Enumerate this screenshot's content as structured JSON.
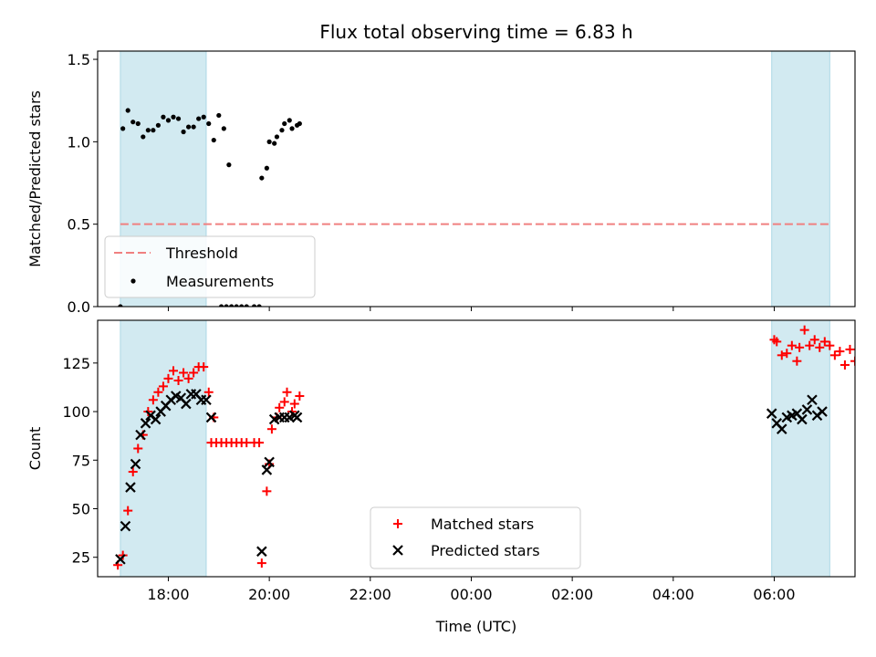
{
  "chart_data": [
    {
      "type": "scatter",
      "title": "Flux total observing time = 6.83 h",
      "xlabel": "",
      "ylabel": "Matched/Predicted stars",
      "xlim": [
        16.6,
        31.6
      ],
      "ylim": [
        0,
        1.55
      ],
      "yticks": [
        0.0,
        0.5,
        1.0,
        1.5
      ],
      "ytick_labels": [
        "0.0",
        "0.5",
        "1.0",
        "1.5"
      ],
      "grid": false,
      "legend": "lower-left",
      "shaded_intervals": [
        [
          17.05,
          18.75
        ],
        [
          29.95,
          31.1
        ]
      ],
      "shade_color": "#add8e6",
      "threshold": {
        "name": "Threshold",
        "value": 0.5,
        "color": "#f08080"
      },
      "series": [
        {
          "name": "Measurements",
          "color": "#000000",
          "points": [
            [
              17.05,
              0.0
            ],
            [
              17.1,
              1.08
            ],
            [
              17.2,
              1.19
            ],
            [
              17.3,
              1.12
            ],
            [
              17.4,
              1.11
            ],
            [
              17.5,
              1.03
            ],
            [
              17.6,
              1.07
            ],
            [
              17.7,
              1.07
            ],
            [
              17.8,
              1.1
            ],
            [
              17.9,
              1.15
            ],
            [
              18.0,
              1.13
            ],
            [
              18.1,
              1.15
            ],
            [
              18.2,
              1.14
            ],
            [
              18.3,
              1.06
            ],
            [
              18.4,
              1.09
            ],
            [
              18.5,
              1.09
            ],
            [
              18.6,
              1.14
            ],
            [
              18.7,
              1.15
            ],
            [
              18.8,
              1.11
            ],
            [
              18.9,
              1.01
            ],
            [
              19.0,
              1.16
            ],
            [
              19.1,
              1.08
            ],
            [
              19.2,
              0.86
            ],
            [
              19.05,
              0.0
            ],
            [
              19.15,
              0.0
            ],
            [
              19.25,
              0.0
            ],
            [
              19.35,
              0.0
            ],
            [
              19.45,
              0.0
            ],
            [
              19.55,
              0.0
            ],
            [
              19.7,
              0.0
            ],
            [
              19.8,
              0.0
            ],
            [
              19.85,
              0.78
            ],
            [
              19.95,
              0.84
            ],
            [
              20.0,
              1.0
            ],
            [
              20.1,
              0.99
            ],
            [
              20.15,
              1.03
            ],
            [
              20.25,
              1.07
            ],
            [
              20.3,
              1.11
            ],
            [
              20.4,
              1.13
            ],
            [
              20.45,
              1.08
            ],
            [
              20.55,
              1.1
            ],
            [
              20.6,
              1.11
            ]
          ]
        }
      ]
    },
    {
      "type": "scatter",
      "title": "",
      "xlabel": "Time (UTC)",
      "ylabel": "Count",
      "xlim": [
        16.6,
        31.6
      ],
      "ylim": [
        15,
        147
      ],
      "yticks": [
        25,
        50,
        75,
        100,
        125
      ],
      "ytick_labels": [
        "25",
        "50",
        "75",
        "100",
        "125"
      ],
      "xticks": [
        18,
        20,
        22,
        24,
        26,
        28,
        30
      ],
      "xtick_labels": [
        "18:00",
        "20:00",
        "22:00",
        "00:00",
        "02:00",
        "04:00",
        "06:00"
      ],
      "grid": false,
      "legend": "lower-center",
      "shaded_intervals": [
        [
          17.05,
          18.75
        ],
        [
          29.95,
          31.1
        ]
      ],
      "shade_color": "#add8e6",
      "series": [
        {
          "name": "Matched stars",
          "marker": "plus",
          "color": "#ff0000",
          "points": [
            [
              17.0,
              21
            ],
            [
              17.1,
              26
            ],
            [
              17.2,
              49
            ],
            [
              17.3,
              69
            ],
            [
              17.4,
              81
            ],
            [
              17.5,
              88
            ],
            [
              17.6,
              100
            ],
            [
              17.7,
              106
            ],
            [
              17.8,
              110
            ],
            [
              17.9,
              113
            ],
            [
              18.0,
              117
            ],
            [
              18.1,
              121
            ],
            [
              18.2,
              116
            ],
            [
              18.3,
              120
            ],
            [
              18.4,
              117
            ],
            [
              18.5,
              120
            ],
            [
              18.6,
              123
            ],
            [
              18.7,
              123
            ],
            [
              18.8,
              110
            ],
            [
              18.9,
              97
            ],
            [
              18.85,
              84
            ],
            [
              18.95,
              84
            ],
            [
              19.05,
              84
            ],
            [
              19.15,
              84
            ],
            [
              19.25,
              84
            ],
            [
              19.35,
              84
            ],
            [
              19.45,
              84
            ],
            [
              19.55,
              84
            ],
            [
              19.7,
              84
            ],
            [
              19.8,
              84
            ],
            [
              19.85,
              22
            ],
            [
              19.95,
              59
            ],
            [
              20.0,
              73
            ],
            [
              20.05,
              91
            ],
            [
              20.15,
              97
            ],
            [
              20.2,
              102
            ],
            [
              20.3,
              105
            ],
            [
              20.35,
              110
            ],
            [
              20.45,
              100
            ],
            [
              20.5,
              104
            ],
            [
              20.6,
              108
            ],
            [
              30.0,
              137
            ],
            [
              30.05,
              136
            ],
            [
              30.15,
              129
            ],
            [
              30.25,
              130
            ],
            [
              30.35,
              134
            ],
            [
              30.45,
              126
            ],
            [
              30.5,
              133
            ],
            [
              30.6,
              142
            ],
            [
              30.7,
              134
            ],
            [
              30.8,
              137
            ],
            [
              30.9,
              133
            ],
            [
              31.0,
              136
            ],
            [
              31.1,
              134
            ],
            [
              31.2,
              129
            ],
            [
              31.3,
              131
            ],
            [
              31.4,
              124
            ],
            [
              31.5,
              132
            ],
            [
              31.6,
              126
            ]
          ]
        },
        {
          "name": "Predicted stars",
          "marker": "x",
          "color": "#000000",
          "points": [
            [
              17.05,
              24
            ],
            [
              17.15,
              41
            ],
            [
              17.25,
              61
            ],
            [
              17.35,
              73
            ],
            [
              17.45,
              88
            ],
            [
              17.55,
              94
            ],
            [
              17.65,
              98
            ],
            [
              17.75,
              96
            ],
            [
              17.85,
              100
            ],
            [
              17.95,
              103
            ],
            [
              18.05,
              106
            ],
            [
              18.15,
              108
            ],
            [
              18.25,
              107
            ],
            [
              18.35,
              104
            ],
            [
              18.45,
              109
            ],
            [
              18.55,
              109
            ],
            [
              18.65,
              106
            ],
            [
              18.75,
              106
            ],
            [
              18.85,
              97
            ],
            [
              19.85,
              28
            ],
            [
              19.95,
              70
            ],
            [
              20.0,
              74
            ],
            [
              20.1,
              96
            ],
            [
              20.2,
              97
            ],
            [
              20.3,
              97
            ],
            [
              20.4,
              97
            ],
            [
              20.5,
              98
            ],
            [
              20.55,
              97
            ],
            [
              29.95,
              99
            ],
            [
              30.05,
              94
            ],
            [
              30.15,
              91
            ],
            [
              30.25,
              97
            ],
            [
              30.35,
              98
            ],
            [
              30.45,
              99
            ],
            [
              30.55,
              96
            ],
            [
              30.65,
              101
            ],
            [
              30.75,
              106
            ],
            [
              30.85,
              98
            ],
            [
              30.95,
              100
            ]
          ]
        }
      ]
    }
  ]
}
